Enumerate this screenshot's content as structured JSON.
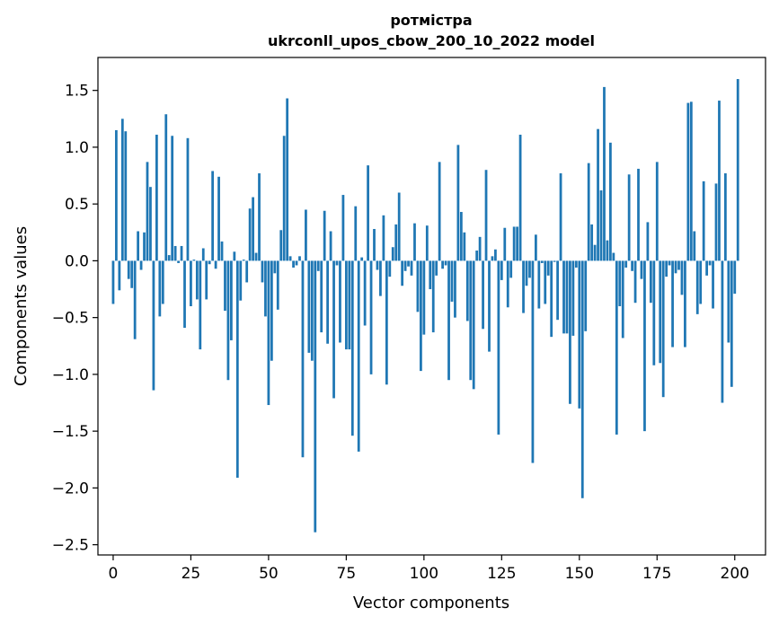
{
  "chart_data": {
    "type": "bar",
    "title_line1": "ротмістра",
    "title_line2": "ukrconll_upos_cbow_200_10_2022 model",
    "xlabel": "Vector components",
    "ylabel": "Components values",
    "xlim": [
      -4.9,
      209.9
    ],
    "ylim": [
      -2.59,
      1.79
    ],
    "xticks": [
      0,
      25,
      50,
      75,
      100,
      125,
      150,
      175,
      200
    ],
    "yticks": [
      -2.5,
      -2.0,
      -1.5,
      -1.0,
      -0.5,
      0.0,
      0.5,
      1.0,
      1.5
    ],
    "ytick_labels": [
      "−2.5",
      "−2.0",
      "−1.5",
      "−1.0",
      "−0.5",
      "0.0",
      "0.5",
      "1.0",
      "1.5"
    ],
    "bar_color": "#1f77b4",
    "values": [
      -0.38,
      1.15,
      -0.26,
      1.25,
      1.14,
      -0.16,
      -0.24,
      -0.69,
      0.26,
      -0.08,
      0.25,
      0.87,
      0.65,
      -1.14,
      1.11,
      -0.49,
      -0.38,
      1.29,
      0.05,
      1.1,
      0.13,
      -0.02,
      0.13,
      -0.59,
      1.08,
      -0.4,
      0.01,
      -0.34,
      -0.78,
      0.11,
      -0.34,
      -0.03,
      0.79,
      -0.07,
      0.74,
      0.17,
      -0.44,
      -1.05,
      -0.7,
      0.08,
      -1.91,
      -0.35,
      0.01,
      -0.19,
      0.46,
      0.56,
      0.07,
      0.77,
      -0.19,
      -0.49,
      -1.27,
      -0.88,
      -0.11,
      -0.43,
      0.27,
      1.1,
      1.43,
      0.04,
      -0.06,
      -0.04,
      0.04,
      -1.73,
      0.45,
      -0.81,
      -0.88,
      -2.39,
      -0.09,
      -0.63,
      0.44,
      -0.73,
      0.26,
      -1.21,
      -0.04,
      -0.72,
      0.58,
      -0.78,
      -0.78,
      -1.54,
      0.48,
      -1.68,
      0.03,
      -0.57,
      0.84,
      -1.0,
      0.28,
      -0.08,
      -0.31,
      0.4,
      -1.09,
      -0.14,
      0.12,
      0.32,
      0.6,
      -0.22,
      -0.09,
      -0.05,
      -0.13,
      0.33,
      -0.45,
      -0.97,
      -0.65,
      0.31,
      -0.25,
      -0.63,
      -0.13,
      0.87,
      -0.07,
      -0.04,
      -1.05,
      -0.36,
      -0.5,
      1.02,
      0.43,
      0.25,
      -0.53,
      -1.05,
      -1.13,
      0.09,
      0.21,
      -0.6,
      0.8,
      -0.8,
      0.04,
      0.1,
      -1.53,
      -0.17,
      0.29,
      -0.41,
      -0.15,
      0.3,
      0.3,
      1.11,
      -0.46,
      -0.22,
      -0.15,
      -1.78,
      0.23,
      -0.42,
      -0.02,
      -0.38,
      -0.13,
      -0.67,
      -0.01,
      -0.52,
      0.77,
      -0.64,
      -0.64,
      -1.26,
      -0.66,
      -0.06,
      -1.3,
      -2.09,
      -0.62,
      0.86,
      0.32,
      0.14,
      1.16,
      0.62,
      1.53,
      0.18,
      1.04,
      0.07,
      -1.53,
      -0.4,
      -0.68,
      -0.06,
      0.76,
      -0.09,
      -0.37,
      0.81,
      -0.16,
      -1.5,
      0.34,
      -0.37,
      -0.92,
      0.87,
      -0.9,
      -1.2,
      -0.14,
      -0.04,
      -0.76,
      -0.11,
      -0.08,
      -0.3,
      -0.76,
      1.39,
      1.4,
      0.26,
      -0.47,
      -0.38,
      0.7,
      -0.13,
      -0.04,
      -0.42,
      0.68,
      1.41,
      -1.25,
      0.77,
      -0.72,
      -1.11,
      -0.29,
      1.6
    ]
  }
}
